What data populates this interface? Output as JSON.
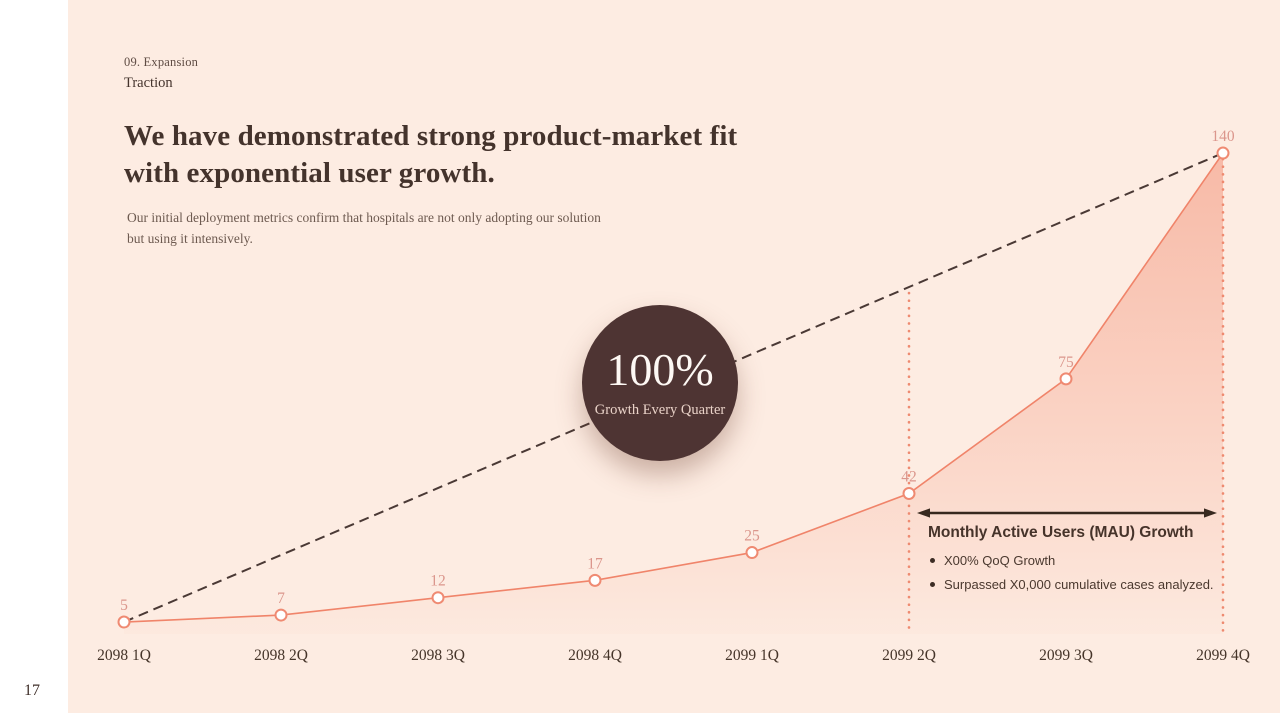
{
  "page": {
    "number": "17"
  },
  "header": {
    "eyebrow": "09. Expansion",
    "category": "Traction",
    "title": "We have demonstrated strong product-market fit\nwith exponential user growth.",
    "subtitle": "Our initial deployment metrics confirm that hospitals are not only adopting our solution\nbut using it intensively."
  },
  "badge": {
    "value": "100%",
    "label": "Growth Every Quarter"
  },
  "annotation": {
    "title": "Monthly Active Users (MAU) Growth",
    "bullets": [
      "X00% QoQ Growth",
      "Surpassed X0,000 cumulative cases analyzed."
    ]
  },
  "chart_data": {
    "type": "area",
    "title": "Monthly Active Users (MAU) Growth",
    "categories": [
      "2098 1Q",
      "2098 2Q",
      "2098 3Q",
      "2098 4Q",
      "2099 1Q",
      "2099 2Q",
      "2099 3Q",
      "2099 4Q"
    ],
    "series": [
      {
        "name": "Monthly Active Users (MAU)",
        "values": [
          5,
          7,
          12,
          17,
          25,
          42,
          75,
          140
        ]
      }
    ],
    "data_labels": [
      "5",
      "7",
      "12",
      "17",
      "25",
      "42",
      "75",
      "140"
    ],
    "trendline": {
      "label": "100% Growth Every Quarter",
      "from_value": 5,
      "to_value": 140,
      "style": "dashed"
    },
    "highlight_range": [
      "2099 2Q",
      "2099 4Q"
    ],
    "xlabel": "",
    "ylabel": "",
    "ylim": [
      0,
      150
    ],
    "grid": false,
    "legend": "none",
    "colors": {
      "line": "#f0846a",
      "marker_stroke": "#ef8a72",
      "marker_fill": "#ffffff",
      "area_top": "#f2876b",
      "label_pink": "#db968c",
      "axis_ink": "#453429",
      "trend_dash": "#4a3935",
      "guide_dot": "#ee8a70",
      "arrow": "#38291f",
      "background": "#fdece2",
      "badge_bg": "#4e3433"
    }
  }
}
